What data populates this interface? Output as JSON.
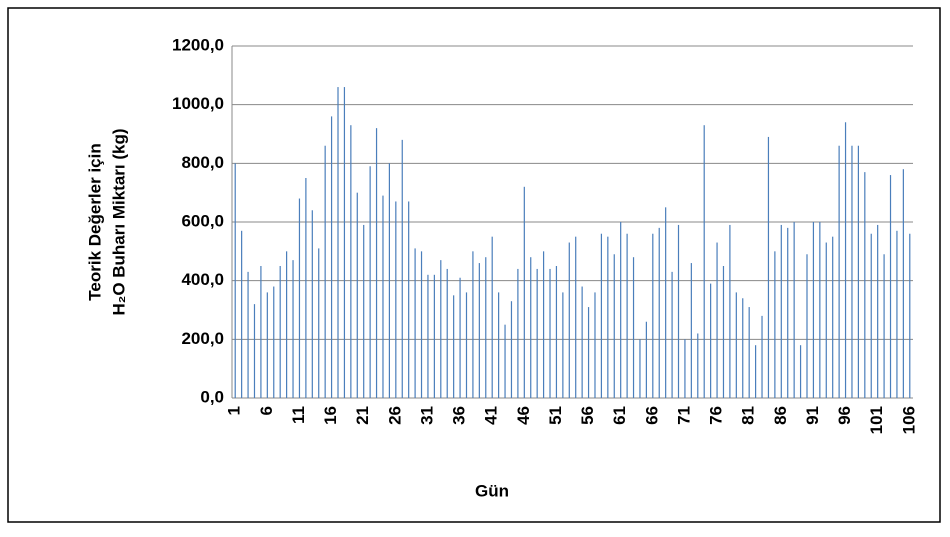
{
  "chart_data": {
    "type": "bar",
    "x_label": "Gün",
    "y_label": [
      "Teorik Değerler için",
      "H₂O Buharı Miktarı (kg)"
    ],
    "categories": [
      "1",
      null,
      null,
      null,
      null,
      "6",
      null,
      null,
      null,
      null,
      "11",
      null,
      null,
      null,
      null,
      "16",
      null,
      null,
      null,
      null,
      "21",
      null,
      null,
      null,
      null,
      "26",
      null,
      null,
      null,
      null,
      "31",
      null,
      null,
      null,
      null,
      "36",
      null,
      null,
      null,
      null,
      "41",
      null,
      null,
      null,
      null,
      "46",
      null,
      null,
      null,
      null,
      "51",
      null,
      null,
      null,
      null,
      "56",
      null,
      null,
      null,
      null,
      "61",
      null,
      null,
      null,
      null,
      "66",
      null,
      null,
      null,
      null,
      "71",
      null,
      null,
      null,
      null,
      "76",
      null,
      null,
      null,
      null,
      "81",
      null,
      null,
      null,
      null,
      "86",
      null,
      null,
      null,
      null,
      "91",
      null,
      null,
      null,
      null,
      "96",
      null,
      null,
      null,
      null,
      "101",
      null,
      null,
      null,
      null,
      "106"
    ],
    "values": [
      800,
      570,
      430,
      320,
      450,
      360,
      380,
      450,
      500,
      470,
      680,
      750,
      640,
      510,
      860,
      960,
      1060,
      1060,
      930,
      700,
      590,
      790,
      920,
      690,
      800,
      670,
      880,
      670,
      510,
      500,
      420,
      420,
      470,
      440,
      350,
      410,
      360,
      500,
      460,
      480,
      550,
      360,
      250,
      330,
      440,
      720,
      480,
      440,
      500,
      440,
      450,
      360,
      530,
      550,
      380,
      310,
      360,
      560,
      550,
      490,
      600,
      560,
      480,
      200,
      260,
      560,
      580,
      650,
      430,
      590,
      200,
      460,
      220,
      930,
      390,
      530,
      450,
      590,
      360,
      340,
      310,
      180,
      280,
      890,
      500,
      590,
      580,
      600,
      180,
      490,
      600,
      600,
      530,
      550,
      860,
      940,
      860,
      860,
      770,
      560,
      590,
      490,
      760,
      570,
      780,
      560
    ],
    "color": "#4a7ebb",
    "ylim": [
      0,
      1200
    ],
    "yticks": [
      {
        "value": 0,
        "label": "0,0"
      },
      {
        "value": 200,
        "label": "200,0"
      },
      {
        "value": 400,
        "label": "400,0"
      },
      {
        "value": 600,
        "label": "600,0"
      },
      {
        "value": 800,
        "label": "800,0"
      },
      {
        "value": 1000,
        "label": "1000,0"
      },
      {
        "value": 1200,
        "label": "1200,0"
      }
    ],
    "grid": true
  }
}
